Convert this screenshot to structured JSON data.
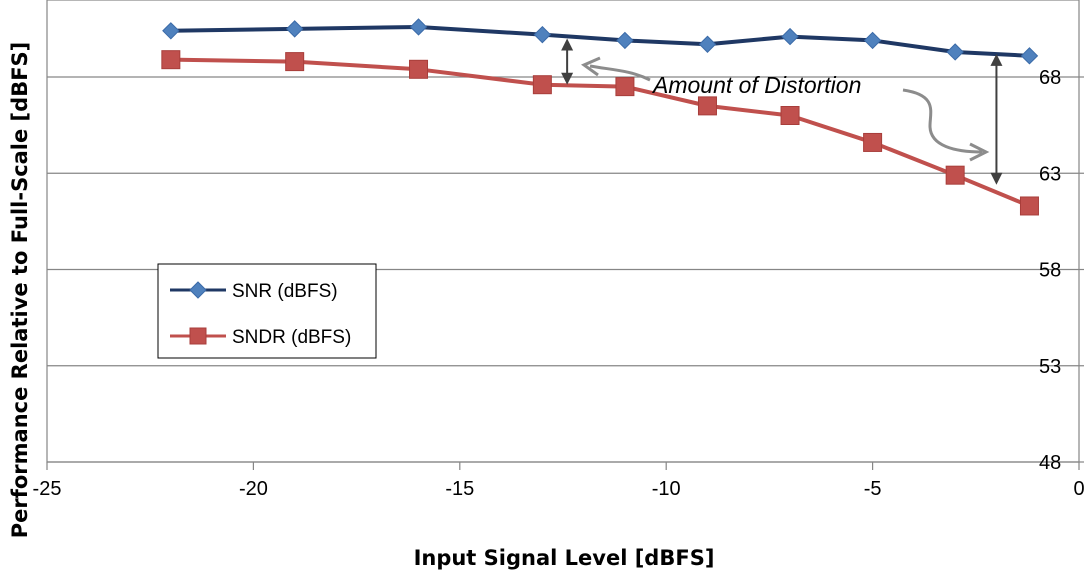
{
  "chart_data": {
    "type": "line",
    "title": "",
    "xlabel": "Input Signal Level [dBFS]",
    "ylabel": "Performance Relative to Full-Scale [dBFS]",
    "xlim": [
      -25,
      0
    ],
    "ylim": [
      48,
      72
    ],
    "x_ticks": [
      -25,
      -20,
      -15,
      -10,
      -5,
      0
    ],
    "y_ticks": [
      48,
      53,
      58,
      63,
      68
    ],
    "y_axis_side": "right",
    "grid": true,
    "legend_position": "left-middle",
    "series": [
      {
        "name": "SNR (dBFS)",
        "color": "#1f3864",
        "marker": "diamond",
        "marker_color": "#4f81bd",
        "x": [
          -22,
          -19,
          -16,
          -13,
          -11,
          -9,
          -7,
          -5,
          -3,
          -1.2
        ],
        "y": [
          70.4,
          70.5,
          70.6,
          70.2,
          69.9,
          69.7,
          70.1,
          69.9,
          69.3,
          69.1
        ]
      },
      {
        "name": "SNDR (dBFS)",
        "color": "#c0504d",
        "marker": "square",
        "marker_color": "#c0504d",
        "x": [
          -22,
          -19,
          -16,
          -13,
          -11,
          -9,
          -7,
          -5,
          -3,
          -1.2
        ],
        "y": [
          68.9,
          68.8,
          68.4,
          67.6,
          67.5,
          66.5,
          66.0,
          64.6,
          62.9,
          61.3
        ]
      }
    ],
    "annotations": [
      {
        "text": "Amount of Distortion"
      }
    ]
  }
}
